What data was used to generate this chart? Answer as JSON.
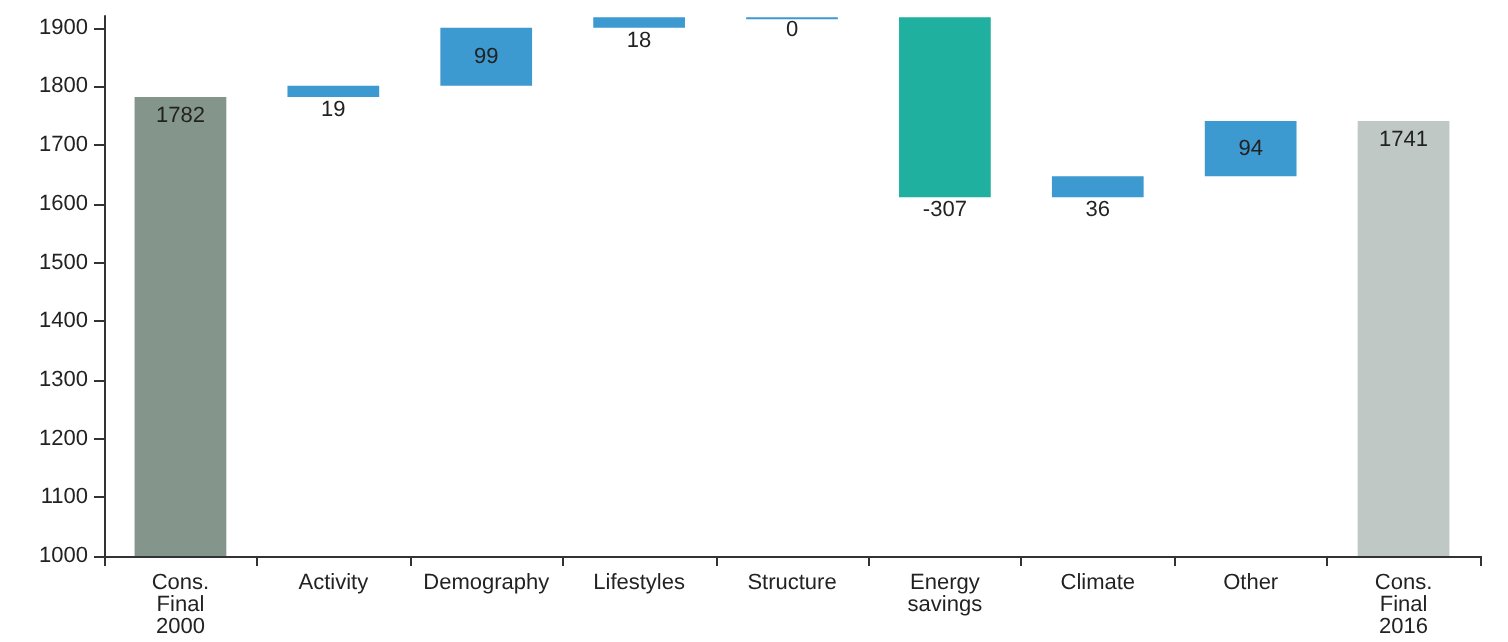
{
  "chart_data": {
    "type": "bar",
    "categories": [
      "Cons.\nFinal\n2000",
      "Activity",
      "Demography",
      "Lifestyles",
      "Structure",
      "Energy\nsavings",
      "Climate",
      "Other",
      "Cons.\nFinal\n2016"
    ],
    "values": [
      1782,
      19,
      99,
      18,
      0,
      -307,
      36,
      94,
      1741
    ],
    "base": [
      null,
      1782,
      1801,
      1900,
      1918,
      1918,
      1611,
      1647,
      null
    ],
    "colors": [
      "#84968c",
      "#3d9ad1",
      "#3d9ad1",
      "#3d9ad1",
      "#3d9ad1",
      "#20b0a0",
      "#3d9ad1",
      "#3d9ad1",
      "#bfc8c4"
    ],
    "ylim": [
      1000,
      1920
    ],
    "yticks": [
      1000,
      1100,
      1200,
      1300,
      1400,
      1500,
      1600,
      1700,
      1800,
      1900
    ],
    "data_labels": true,
    "grid": false
  }
}
